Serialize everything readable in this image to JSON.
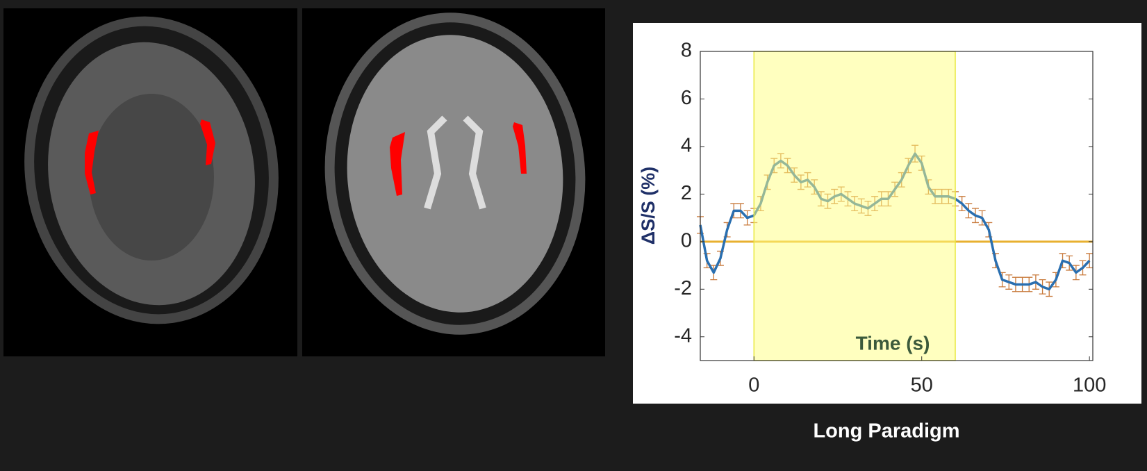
{
  "chart_data": {
    "type": "line",
    "y_label": "ΔS/S (%)",
    "x_label": "Time (s)",
    "caption": "Long Paradigm",
    "xlim": [
      -16,
      101
    ],
    "ylim": [
      -5,
      8
    ],
    "xticks": [
      0,
      50,
      100
    ],
    "yticks": [
      -4,
      -2,
      0,
      2,
      4,
      6,
      8
    ],
    "shade": {
      "x": [
        0,
        60
      ],
      "color": "#ffff80"
    },
    "hline": {
      "y": 0,
      "color": "#e8b030"
    },
    "error_color": "#c8793a",
    "series": [
      {
        "color": "#2a6fb0",
        "x": [
          -16,
          -14,
          -12,
          -10,
          -8,
          -6,
          -4,
          -2,
          0,
          2,
          4,
          6,
          8,
          10,
          12,
          14,
          16,
          18,
          20,
          22,
          24,
          26,
          28,
          30,
          32,
          34,
          36,
          38,
          40,
          42,
          44,
          46,
          48,
          50,
          52,
          54,
          56,
          58,
          60,
          62,
          64,
          66,
          68,
          70,
          72,
          74,
          76,
          78,
          80,
          82,
          84,
          86,
          88,
          90,
          92,
          94,
          96,
          98,
          100
        ],
        "values": [
          0.7,
          -0.8,
          -1.3,
          -0.7,
          0.5,
          1.3,
          1.3,
          1.0,
          1.1,
          1.6,
          2.5,
          3.2,
          3.4,
          3.2,
          2.8,
          2.5,
          2.6,
          2.3,
          1.8,
          1.7,
          1.9,
          2.0,
          1.8,
          1.6,
          1.5,
          1.4,
          1.6,
          1.8,
          1.8,
          2.2,
          2.6,
          3.2,
          3.7,
          3.3,
          2.3,
          1.9,
          1.9,
          1.9,
          1.8,
          1.6,
          1.3,
          1.1,
          1.0,
          0.5,
          -0.8,
          -1.6,
          -1.7,
          -1.8,
          -1.8,
          -1.8,
          -1.7,
          -1.9,
          -2.0,
          -1.6,
          -0.8,
          -0.9,
          -1.3,
          -1.1,
          -0.8
        ],
        "errors": [
          0.35,
          0.3,
          0.3,
          0.3,
          0.3,
          0.3,
          0.3,
          0.3,
          0.3,
          0.3,
          0.3,
          0.3,
          0.3,
          0.3,
          0.3,
          0.3,
          0.3,
          0.3,
          0.3,
          0.3,
          0.3,
          0.3,
          0.3,
          0.3,
          0.3,
          0.3,
          0.3,
          0.3,
          0.3,
          0.3,
          0.3,
          0.3,
          0.35,
          0.3,
          0.3,
          0.3,
          0.3,
          0.3,
          0.3,
          0.3,
          0.3,
          0.3,
          0.3,
          0.3,
          0.3,
          0.3,
          0.3,
          0.3,
          0.3,
          0.3,
          0.3,
          0.3,
          0.3,
          0.3,
          0.3,
          0.3,
          0.3,
          0.3,
          0.3
        ]
      }
    ]
  }
}
